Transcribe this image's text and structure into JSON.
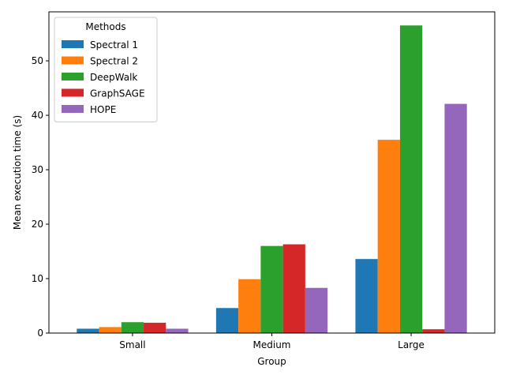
{
  "chart_data": {
    "type": "bar",
    "title": "",
    "xlabel": "Group",
    "ylabel": "Mean execution time (s)",
    "categories": [
      "Small",
      "Medium",
      "Large"
    ],
    "ylim": [
      0,
      59
    ],
    "yticks": [
      0,
      10,
      20,
      30,
      40,
      50
    ],
    "grid": false,
    "legend": {
      "title": "Methods",
      "placement": "top-left"
    },
    "series": [
      {
        "name": "Spectral 1",
        "color": "#1f77b4",
        "values": [
          0.8,
          4.6,
          13.6
        ]
      },
      {
        "name": "Spectral 2",
        "color": "#ff7f0e",
        "values": [
          1.1,
          9.9,
          35.5
        ]
      },
      {
        "name": "DeepWalk",
        "color": "#2ca02c",
        "values": [
          2.0,
          16.0,
          56.5
        ]
      },
      {
        "name": "GraphSAGE",
        "color": "#d62728",
        "values": [
          1.9,
          16.3,
          0.7
        ]
      },
      {
        "name": "HOPE",
        "color": "#9467bd",
        "values": [
          0.8,
          8.3,
          42.1
        ]
      }
    ]
  }
}
